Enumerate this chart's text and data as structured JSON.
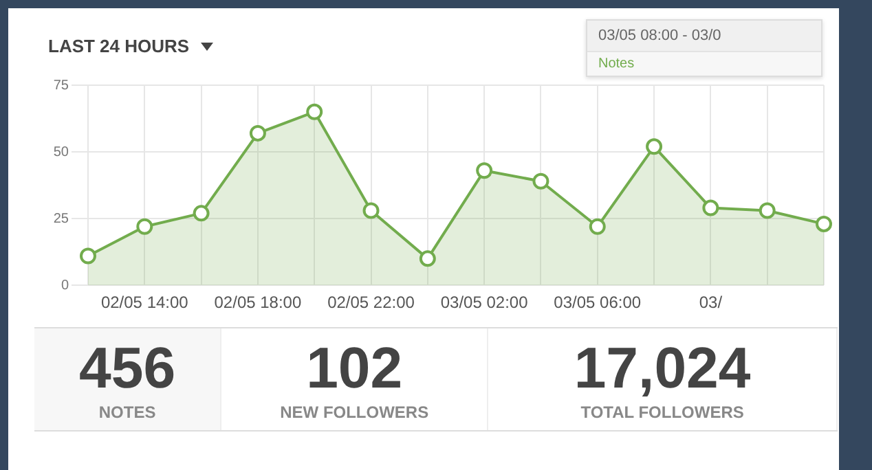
{
  "chart_data": [
    {
      "type": "area",
      "title": "LAST 24 HOURS",
      "categories": [
        null,
        "02/05 14:00",
        null,
        "02/05 18:00",
        null,
        "02/05 22:00",
        null,
        "03/05 02:00",
        null,
        "03/05 06:00",
        null,
        "03/",
        null,
        null
      ],
      "series": [
        {
          "color": "#72ac4d",
          "values": [
            11,
            22,
            27,
            57,
            65,
            28,
            10,
            43,
            39,
            22,
            52,
            29,
            28,
            23
          ]
        }
      ],
      "ylim": [
        0,
        75
      ],
      "yticks": [
        0,
        25,
        50,
        75
      ],
      "grid": true,
      "legend": false,
      "marker": "circle",
      "annotations": [
        "03/05 08:00 - 03/0",
        "Notes"
      ]
    },
    {
      "type": "other",
      "annotations": [
        "456",
        "NOTES",
        "102",
        "NEW FOLLOWERS",
        "17,024",
        "TOTAL FOLLOWERS"
      ]
    }
  ]
}
